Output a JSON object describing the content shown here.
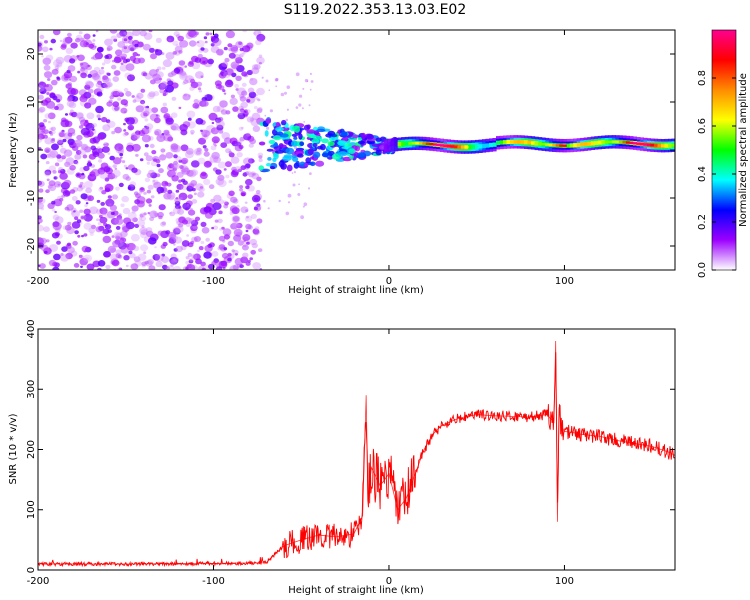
{
  "title": "S119.2022.353.13.03.E02",
  "chart_data": [
    {
      "type": "heatmap",
      "xlabel": "Height of straight line (km)",
      "ylabel": "Frequency (Hz)",
      "xlim": [
        -200,
        163
      ],
      "ylim": [
        -25,
        25
      ],
      "x_ticks": [
        -200,
        -100,
        0,
        100
      ],
      "y_ticks": [
        -20,
        -10,
        0,
        10,
        20
      ],
      "colorbar": {
        "label": "Normalized spectral amplitude",
        "range": [
          0,
          1
        ],
        "ticks": [
          "0.0",
          "0.2",
          "0.4",
          "0.6",
          "0.8"
        ],
        "colormap": [
          "#ffffff",
          "#9c00ff",
          "#0000ff",
          "#00ffff",
          "#00ff00",
          "#ffff00",
          "#ff8c00",
          "#ff0000",
          "#ff0090"
        ]
      },
      "regions": [
        {
          "name": "noise",
          "x_range": [
            -200,
            -73
          ],
          "y_range": [
            -25,
            25
          ],
          "amplitude_range": [
            0.0,
            0.2
          ]
        },
        {
          "name": "signal_onset",
          "x_range": [
            -73,
            5
          ],
          "center_freq_hz": 1.5,
          "amplitude_range": [
            0.1,
            0.45
          ]
        },
        {
          "name": "signal",
          "x_range": [
            5,
            163
          ],
          "center_freq_hz": 1.0,
          "amplitude_range": [
            0.3,
            1.0
          ]
        }
      ]
    },
    {
      "type": "line",
      "xlabel": "Height of straight line (km)",
      "ylabel": "SNR (10 * v/v)",
      "xlim": [
        -200,
        163
      ],
      "ylim": [
        0,
        400
      ],
      "x_ticks": [
        -200,
        -100,
        0,
        100
      ],
      "y_ticks": [
        0,
        100,
        200,
        300,
        400
      ],
      "series": [
        {
          "color": "#ff0000",
          "x": [
            -200,
            -150,
            -100,
            -70,
            -60,
            -50,
            -40,
            -30,
            -20,
            -15,
            -13,
            -12,
            -10,
            -5,
            0,
            5,
            10,
            15,
            20,
            25,
            30,
            40,
            50,
            60,
            70,
            80,
            90,
            94,
            95,
            96,
            97,
            98,
            100,
            105,
            110,
            120,
            130,
            140,
            150,
            160,
            163
          ],
          "y": [
            10,
            10,
            11,
            12,
            40,
            50,
            58,
            55,
            60,
            90,
            290,
            120,
            170,
            140,
            160,
            100,
            120,
            160,
            200,
            225,
            240,
            252,
            258,
            256,
            255,
            254,
            258,
            245,
            380,
            80,
            270,
            240,
            230,
            228,
            225,
            222,
            215,
            210,
            205,
            195,
            190
          ]
        }
      ]
    }
  ]
}
